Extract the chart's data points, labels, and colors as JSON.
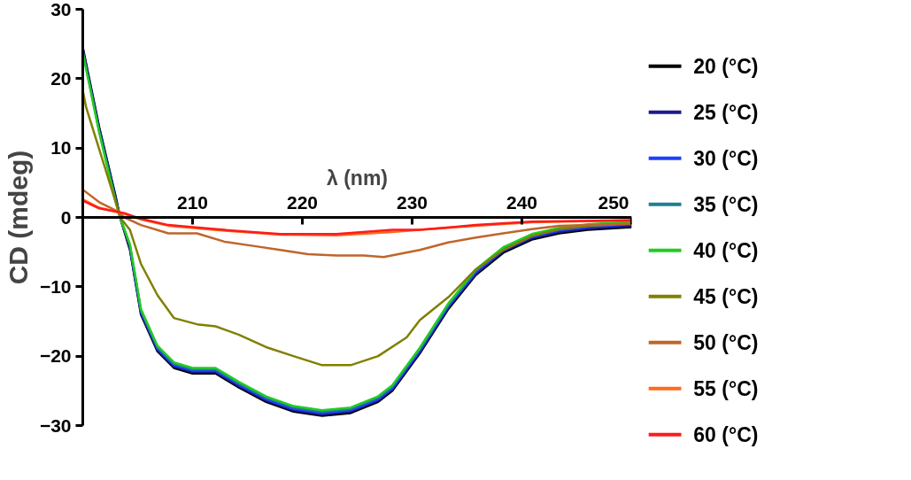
{
  "chart_data": {
    "type": "line",
    "xlabel": "λ (nm)",
    "ylabel": "CD (mdeg)",
    "xlim": [
      200,
      250
    ],
    "xticks": [
      210,
      220,
      230,
      240,
      250
    ],
    "ylim": [
      -30,
      30
    ],
    "yticks": [
      -30,
      -20,
      -10,
      0,
      10,
      20,
      30
    ],
    "grid": false,
    "legend": "right",
    "line_style": "solid",
    "series": [
      {
        "name": "20 (°C)",
        "color": "#000000",
        "x": [
          200,
          201.5,
          203,
          203.4,
          204.3,
          205.3,
          206.8,
          208.3,
          210,
          212.1,
          214.2,
          216.7,
          219.2,
          221.8,
          224.4,
          226.9,
          228.2,
          230.7,
          233.3,
          235.8,
          238.3,
          240.9,
          243.4,
          246,
          250
        ],
        "values": [
          24.5,
          13,
          3,
          0,
          -4.7,
          -14,
          -19.3,
          -21.7,
          -22.5,
          -22.5,
          -24.5,
          -26.6,
          -28,
          -28.6,
          -28.2,
          -26.6,
          -25,
          -19.6,
          -13.2,
          -8.3,
          -5.1,
          -3.2,
          -2.3,
          -1.8,
          -1.4
        ]
      },
      {
        "name": "25 (°C)",
        "color": "#1a1a8c",
        "x": [
          200,
          201.5,
          203,
          203.4,
          204.3,
          205.3,
          206.8,
          208.3,
          210,
          212.1,
          214.2,
          216.7,
          219.2,
          221.8,
          224.4,
          226.9,
          228.2,
          230.7,
          233.3,
          235.8,
          238.3,
          240.9,
          243.4,
          246,
          250
        ],
        "values": [
          24.3,
          12.8,
          2.8,
          0,
          -4.5,
          -13.8,
          -19.1,
          -21.5,
          -22.3,
          -22.3,
          -24.3,
          -26.4,
          -27.8,
          -28.4,
          -28,
          -26.4,
          -24.8,
          -19.4,
          -13,
          -8.1,
          -4.9,
          -3,
          -2.1,
          -1.6,
          -1.2
        ]
      },
      {
        "name": "30 (°C)",
        "color": "#1f3fff",
        "x": [
          204.3,
          205.3,
          206.8,
          208.3,
          210,
          212.1,
          214.2,
          216.7,
          219.2,
          221.8,
          224.4,
          226.9,
          228.2,
          230.7,
          233.3,
          235.8,
          238.3,
          240.9,
          243.4,
          246,
          250
        ],
        "values": [
          -4.3,
          -13.6,
          -18.9,
          -21.3,
          -22.1,
          -22.1,
          -24.1,
          -26.2,
          -27.6,
          -28.2,
          -27.8,
          -26.2,
          -24.6,
          -19.2,
          -12.8,
          -7.9,
          -4.7,
          -2.8,
          -1.9,
          -1.4,
          -1
        ]
      },
      {
        "name": "35 (°C)",
        "color": "#1f7f8f",
        "x": [
          200,
          201.5,
          203,
          203.4,
          204.3,
          205.3,
          206.8,
          208.3,
          210,
          212.1,
          214.2,
          216.7,
          219.2,
          221.8,
          224.4,
          226.9,
          228.2,
          230.7,
          233.3,
          235.8,
          238.3,
          240.9,
          243.4,
          246,
          250
        ],
        "values": [
          23.9,
          12.4,
          2.4,
          0,
          -4.1,
          -13.4,
          -18.7,
          -21.1,
          -21.9,
          -21.9,
          -23.9,
          -26,
          -27.4,
          -28,
          -27.6,
          -26,
          -24.4,
          -19,
          -12.6,
          -7.7,
          -4.5,
          -2.6,
          -1.7,
          -1.2,
          -0.8
        ]
      },
      {
        "name": "40 (°C)",
        "color": "#22cc22",
        "x": [
          200,
          201.5,
          203,
          203.4,
          204.3,
          205.3,
          206.8,
          208.3,
          210,
          212.1,
          214.2,
          216.7,
          219.2,
          221.8,
          224.4,
          226.9,
          228.2,
          230.7,
          233.3,
          235.8,
          238.3,
          240.9,
          243.4,
          246,
          250
        ],
        "values": [
          23.7,
          12.2,
          2.2,
          0,
          -3.9,
          -13.2,
          -18.5,
          -20.9,
          -21.7,
          -21.7,
          -23.7,
          -25.8,
          -27.2,
          -27.8,
          -27.4,
          -25.8,
          -24.2,
          -18.8,
          -12.4,
          -7.5,
          -4.3,
          -2.4,
          -1.5,
          -1,
          -0.6
        ]
      },
      {
        "name": "45 (°C)",
        "color": "#808000",
        "x": [
          200,
          200.3,
          201.5,
          203,
          203.4,
          204.3,
          205.3,
          206.8,
          208.3,
          210.4,
          212.1,
          214.2,
          216.7,
          219.2,
          221.8,
          224.4,
          226.9,
          229.5,
          230.7,
          233.3,
          235.8,
          238.3,
          240.9,
          243.4,
          246,
          250
        ],
        "values": [
          18.3,
          15.9,
          9.8,
          2.2,
          0,
          -1.8,
          -6.7,
          -11.2,
          -14.5,
          -15.4,
          -15.7,
          -16.9,
          -18.7,
          -20,
          -21.3,
          -21.3,
          -20,
          -17.3,
          -14.8,
          -11.5,
          -7.5,
          -4.7,
          -2.7,
          -1.7,
          -1.2,
          -0.9
        ]
      },
      {
        "name": "50 (°C)",
        "color": "#c0652a",
        "x": [
          200,
          201.5,
          203,
          203.8,
          205.3,
          207.8,
          210.4,
          212.9,
          215.5,
          218,
          220.5,
          223.1,
          225.6,
          227.4,
          230.7,
          233.3,
          235.8,
          238.3,
          240.9,
          243.4,
          250
        ],
        "values": [
          4,
          2.2,
          1,
          0,
          -1.1,
          -2.3,
          -2.3,
          -3.5,
          -4.1,
          -4.7,
          -5.3,
          -5.5,
          -5.5,
          -5.7,
          -4.7,
          -3.6,
          -2.9,
          -2.3,
          -1.7,
          -1.2,
          -0.9
        ]
      },
      {
        "name": "55 (°C)",
        "color": "#ff6a1a",
        "x": [
          200,
          201.5,
          203.8,
          205.3,
          207.8,
          212.9,
          218,
          223.1,
          228.2,
          230.7,
          235.8,
          240.9,
          250
        ],
        "values": [
          2.6,
          1.4,
          0.5,
          -0.3,
          -1.2,
          -1.9,
          -2.5,
          -2.6,
          -2.1,
          -1.8,
          -1.2,
          -0.7,
          -0.4
        ]
      },
      {
        "name": "60 (°C)",
        "color": "#ff1a1a",
        "x": [
          200,
          201.5,
          203.8,
          205.3,
          207.8,
          212.9,
          218,
          223.1,
          228.2,
          230.7,
          235.8,
          240.9,
          250
        ],
        "values": [
          2.4,
          1.3,
          0.6,
          -0.2,
          -1.1,
          -1.8,
          -2.4,
          -2.4,
          -1.8,
          -1.8,
          -1.1,
          -0.6,
          -0.4
        ]
      }
    ]
  }
}
